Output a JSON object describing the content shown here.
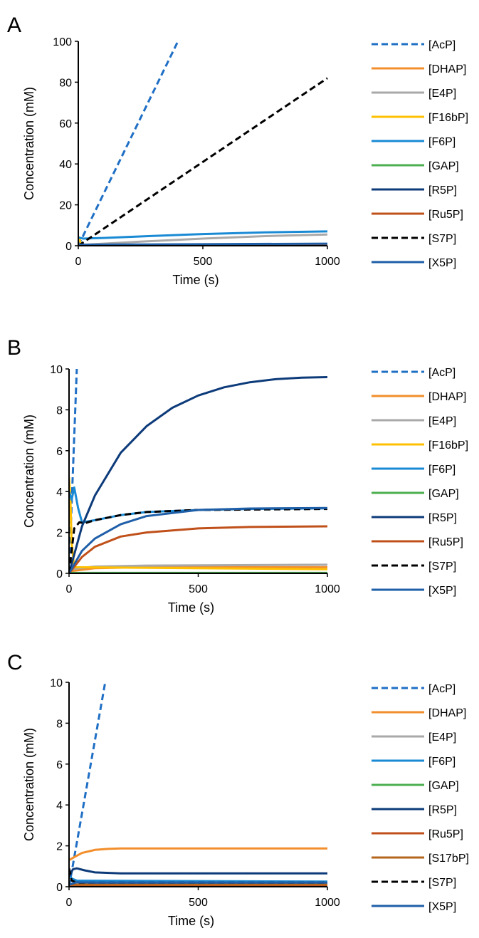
{
  "chart_data": [
    {
      "panel": "A",
      "type": "line",
      "xlabel": "Time (s)",
      "ylabel": "Concentration  (mM)",
      "xlim": [
        0,
        1000
      ],
      "ylim": [
        0,
        100
      ],
      "xticks": [
        "0",
        "500",
        "1000"
      ],
      "yticks": [
        "0",
        "20",
        "40",
        "60",
        "80",
        "100"
      ],
      "legend_position": "right",
      "series": [
        {
          "name": "[AcP]",
          "color": "#1f6fc5",
          "dash": true,
          "points": [
            [
              0,
              0
            ],
            [
              400,
              100
            ]
          ]
        },
        {
          "name": "[DHAP]",
          "color": "#f28e2b",
          "dash": false,
          "points": [
            [
              0,
              0.3
            ],
            [
              1000,
              0.4
            ]
          ]
        },
        {
          "name": "[E4P]",
          "color": "#a9a9a9",
          "dash": false,
          "points": [
            [
              0,
              0.3
            ],
            [
              250,
              2
            ],
            [
              500,
              3.5
            ],
            [
              750,
              4.7
            ],
            [
              1000,
              5.5
            ]
          ]
        },
        {
          "name": "[F16bP]",
          "color": "#ffc000",
          "dash": false,
          "points": [
            [
              0,
              4.5
            ],
            [
              5,
              3.5
            ],
            [
              10,
              1
            ],
            [
              20,
              0.2
            ],
            [
              1000,
              0.2
            ]
          ]
        },
        {
          "name": "[F6P]",
          "color": "#1a8ad4",
          "dash": false,
          "points": [
            [
              0,
              4
            ],
            [
              20,
              3.5
            ],
            [
              100,
              3.8
            ],
            [
              300,
              4.8
            ],
            [
              500,
              5.7
            ],
            [
              750,
              6.5
            ],
            [
              1000,
              7
            ]
          ]
        },
        {
          "name": "[GAP]",
          "color": "#4caf50",
          "dash": false,
          "points": [
            [
              0,
              0.1
            ],
            [
              1000,
              0.1
            ]
          ]
        },
        {
          "name": "[R5P]",
          "color": "#0d3b7a",
          "dash": false,
          "points": [
            [
              0,
              0.2
            ],
            [
              1000,
              0.6
            ]
          ]
        },
        {
          "name": "[Ru5P]",
          "color": "#c0501a",
          "dash": false,
          "points": [
            [
              0,
              0.1
            ],
            [
              1000,
              0.3
            ]
          ]
        },
        {
          "name": "[S7P]",
          "color": "#000000",
          "dash": true,
          "points": [
            [
              0,
              0
            ],
            [
              1000,
              82
            ]
          ]
        },
        {
          "name": "[X5P]",
          "color": "#1f5fa8",
          "dash": false,
          "points": [
            [
              0,
              0.5
            ],
            [
              1000,
              1
            ]
          ]
        }
      ]
    },
    {
      "panel": "B",
      "type": "line",
      "xlabel": "Time (s)",
      "ylabel": "Concentration  (mM)",
      "xlim": [
        0,
        1000
      ],
      "ylim": [
        0,
        10
      ],
      "xticks": [
        "0",
        "500",
        "1000"
      ],
      "yticks": [
        "0",
        "2",
        "4",
        "6",
        "8",
        "10"
      ],
      "legend_position": "right",
      "series": [
        {
          "name": "[AcP]",
          "color": "#1f6fc5",
          "dash": true,
          "points": [
            [
              0,
              0
            ],
            [
              30,
              10
            ]
          ]
        },
        {
          "name": "[DHAP]",
          "color": "#f28e2b",
          "dash": false,
          "points": [
            [
              0,
              0.1
            ],
            [
              100,
              0.25
            ],
            [
              300,
              0.3
            ],
            [
              1000,
              0.3
            ]
          ]
        },
        {
          "name": "[E4P]",
          "color": "#a9a9a9",
          "dash": false,
          "points": [
            [
              0,
              0.2
            ],
            [
              100,
              0.33
            ],
            [
              300,
              0.38
            ],
            [
              1000,
              0.42
            ]
          ]
        },
        {
          "name": "[F16bP]",
          "color": "#ffc000",
          "dash": false,
          "points": [
            [
              0,
              4.7
            ],
            [
              5,
              3.8
            ],
            [
              10,
              1.5
            ],
            [
              20,
              0.3
            ],
            [
              1000,
              0.2
            ]
          ]
        },
        {
          "name": "[F6P]",
          "color": "#1a8ad4",
          "dash": false,
          "points": [
            [
              0,
              4.0
            ],
            [
              10,
              3.6
            ],
            [
              20,
              4.2
            ],
            [
              35,
              3.2
            ],
            [
              50,
              2.5
            ],
            [
              100,
              2.6
            ],
            [
              200,
              2.85
            ],
            [
              300,
              3.0
            ],
            [
              500,
              3.1
            ],
            [
              700,
              3.15
            ],
            [
              1000,
              3.18
            ]
          ]
        },
        {
          "name": "[GAP]",
          "color": "#4caf50",
          "dash": false,
          "points": [
            [
              0,
              0.02
            ],
            [
              1000,
              0.02
            ]
          ]
        },
        {
          "name": "[R5P]",
          "color": "#0d3b7a",
          "dash": false,
          "points": [
            [
              0,
              0
            ],
            [
              50,
              2.3
            ],
            [
              100,
              3.8
            ],
            [
              200,
              5.9
            ],
            [
              300,
              7.2
            ],
            [
              400,
              8.1
            ],
            [
              500,
              8.7
            ],
            [
              600,
              9.1
            ],
            [
              700,
              9.35
            ],
            [
              800,
              9.5
            ],
            [
              900,
              9.57
            ],
            [
              1000,
              9.6
            ]
          ]
        },
        {
          "name": "[Ru5P]",
          "color": "#c0501a",
          "dash": false,
          "points": [
            [
              0,
              0
            ],
            [
              50,
              0.8
            ],
            [
              100,
              1.3
            ],
            [
              200,
              1.8
            ],
            [
              300,
              2.0
            ],
            [
              500,
              2.2
            ],
            [
              700,
              2.27
            ],
            [
              1000,
              2.3
            ]
          ]
        },
        {
          "name": "[S7P]",
          "color": "#000000",
          "dash": true,
          "points": [
            [
              0,
              0
            ],
            [
              20,
              2.2
            ],
            [
              40,
              2.5
            ],
            [
              60,
              2.45
            ],
            [
              100,
              2.6
            ],
            [
              200,
              2.85
            ],
            [
              300,
              3.0
            ],
            [
              500,
              3.1
            ],
            [
              1000,
              3.15
            ]
          ]
        },
        {
          "name": "[X5P]",
          "color": "#1f5fa8",
          "dash": false,
          "points": [
            [
              0,
              0
            ],
            [
              50,
              1.1
            ],
            [
              100,
              1.7
            ],
            [
              200,
              2.4
            ],
            [
              300,
              2.8
            ],
            [
              500,
              3.1
            ],
            [
              700,
              3.17
            ],
            [
              1000,
              3.2
            ]
          ]
        }
      ]
    },
    {
      "panel": "C",
      "type": "line",
      "xlabel": "Time (s)",
      "ylabel": "Concentration  (mM)",
      "xlim": [
        0,
        1000
      ],
      "ylim": [
        0,
        10
      ],
      "xticks": [
        "0",
        "500",
        "1000"
      ],
      "yticks": [
        "0",
        "2",
        "4",
        "6",
        "8",
        "10"
      ],
      "legend_position": "right",
      "series": [
        {
          "name": "[AcP]",
          "color": "#1f6fc5",
          "dash": true,
          "points": [
            [
              0,
              0
            ],
            [
              140,
              10
            ]
          ]
        },
        {
          "name": "[DHAP]",
          "color": "#f28e2b",
          "dash": false,
          "points": [
            [
              0,
              1.3
            ],
            [
              20,
              1.45
            ],
            [
              50,
              1.65
            ],
            [
              100,
              1.8
            ],
            [
              150,
              1.85
            ],
            [
              200,
              1.87
            ],
            [
              1000,
              1.87
            ]
          ]
        },
        {
          "name": "[E4P]",
          "color": "#a9a9a9",
          "dash": false,
          "points": [
            [
              0,
              0.1
            ],
            [
              1000,
              0.12
            ]
          ]
        },
        {
          "name": "[F6P]",
          "color": "#1a8ad4",
          "dash": false,
          "points": [
            [
              0,
              0.6
            ],
            [
              10,
              0.4
            ],
            [
              30,
              0.3
            ],
            [
              1000,
              0.25
            ]
          ]
        },
        {
          "name": "[GAP]",
          "color": "#4caf50",
          "dash": false,
          "points": [
            [
              0,
              0.05
            ],
            [
              1000,
              0.05
            ]
          ]
        },
        {
          "name": "[R5P]",
          "color": "#0d3b7a",
          "dash": false,
          "points": [
            [
              0,
              0.5
            ],
            [
              15,
              0.85
            ],
            [
              30,
              0.9
            ],
            [
              60,
              0.8
            ],
            [
              100,
              0.7
            ],
            [
              200,
              0.65
            ],
            [
              1000,
              0.65
            ]
          ]
        },
        {
          "name": "[Ru5P]",
          "color": "#c0501a",
          "dash": false,
          "points": [
            [
              0,
              0.05
            ],
            [
              1000,
              0.08
            ]
          ]
        },
        {
          "name": "[S17bP]",
          "color": "#b5651d",
          "dash": false,
          "points": [
            [
              0,
              0.1
            ],
            [
              1000,
              0.12
            ]
          ]
        },
        {
          "name": "[S7P]",
          "color": "#000000",
          "dash": true,
          "points": [
            [
              0,
              0.9
            ],
            [
              10,
              0.3
            ],
            [
              30,
              0.2
            ],
            [
              1000,
              0.2
            ]
          ]
        },
        {
          "name": "[X5P]",
          "color": "#1f5fa8",
          "dash": false,
          "points": [
            [
              0,
              0.1
            ],
            [
              30,
              0.22
            ],
            [
              100,
              0.2
            ],
            [
              1000,
              0.2
            ]
          ]
        }
      ]
    }
  ]
}
